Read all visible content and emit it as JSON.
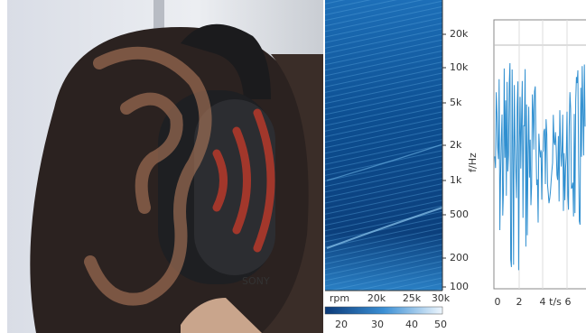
{
  "spectrogram": {
    "y_labels": [
      "20k",
      "10k",
      "5k",
      "2k",
      "1k",
      "500",
      "200",
      "100"
    ],
    "y_axis_label": "f/Hz",
    "x_labels": [
      "rpm",
      "20k",
      "25k",
      "30k"
    ],
    "colorbar_labels": [
      "20",
      "30",
      "40",
      "50"
    ]
  },
  "waveform": {
    "x_labels": [
      "0",
      "2",
      "4",
      "t/s",
      "6"
    ]
  },
  "photo": {
    "headphone_brand": "SONY"
  }
}
